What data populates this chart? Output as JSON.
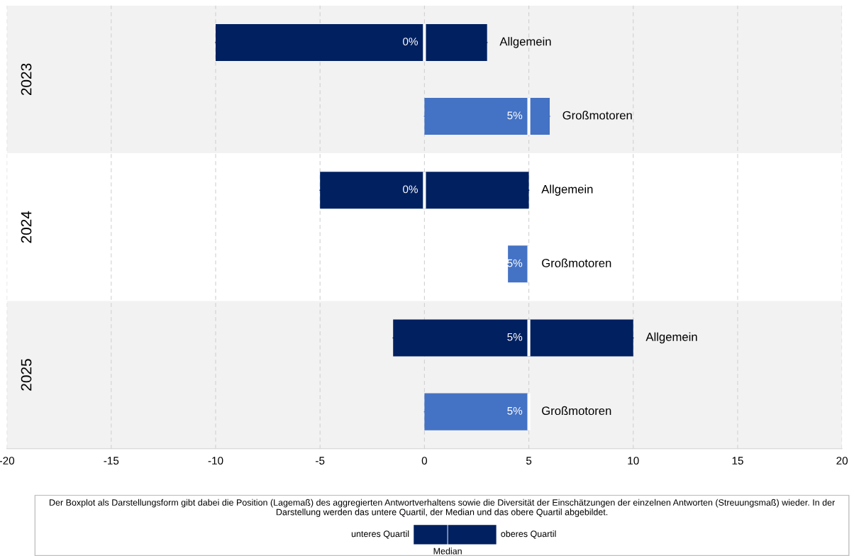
{
  "chart_data": {
    "type": "box",
    "orientation": "horizontal",
    "categories": [
      "2023",
      "2024",
      "2025"
    ],
    "series": [
      {
        "name": "Allgemein",
        "color": "#002060",
        "boxes": [
          {
            "low": -10,
            "q1": -10,
            "median": 0,
            "q3": 3,
            "high": 3
          },
          {
            "low": -5,
            "q1": -5,
            "median": 0,
            "q3": 5,
            "high": 5
          },
          {
            "low": -1.5,
            "q1": -1.5,
            "median": 5,
            "q3": 10,
            "high": 10
          }
        ],
        "value_labels": [
          "0%",
          "0%",
          "5%"
        ]
      },
      {
        "name": "Großmotoren",
        "color": "#4472c4",
        "boxes": [
          {
            "low": 0,
            "q1": 0,
            "median": 5,
            "q3": 6,
            "high": 6
          },
          {
            "low": 4,
            "q1": 4,
            "median": 5,
            "q3": 5,
            "high": 5
          },
          {
            "low": 0,
            "q1": 0,
            "median": 5,
            "q3": 5,
            "high": 5
          }
        ],
        "value_labels": [
          "5%",
          "5%",
          "5%"
        ]
      }
    ],
    "xlim": [
      -20,
      20
    ],
    "xticks": [
      -20,
      -15,
      -10,
      -5,
      0,
      5,
      10,
      15,
      20
    ],
    "grid": "x",
    "legend": "top right",
    "annotations": [
      "Der Boxplot als Darstellungsform gibt dabei die Position (Lagemaß) des aggregierten Antwortverhaltens sowie die Diversität der Einschätzungen der einzelnen Antworten (Streuungsmaß) wieder. In der Darstellung werden das untere Quartil, der Median und das obere Quartil abgebildet.",
      "unteres Quartil",
      "oberes Quartil",
      "Median"
    ]
  }
}
